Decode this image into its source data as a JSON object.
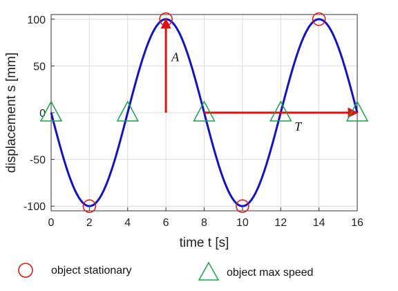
{
  "chart_data": {
    "type": "line",
    "xlabel": "time  t  [s]",
    "ylabel": "displacement  s  [mm]",
    "xlim": [
      0,
      16
    ],
    "ylim": [
      -105,
      105
    ],
    "x_ticks": [
      0,
      2,
      4,
      6,
      8,
      10,
      12,
      14,
      16
    ],
    "y_ticks": [
      -100,
      -50,
      0,
      50,
      100
    ],
    "grid": true,
    "series": [
      {
        "function": "s(t) = -100 sin(2*pi*t/8)",
        "amplitude": 100,
        "period": 8,
        "x": [
          0,
          1,
          2,
          3,
          4,
          5,
          6,
          7,
          8,
          9,
          10,
          11,
          12,
          13,
          14,
          15,
          16
        ],
        "y": [
          0,
          -70.7,
          -100,
          -70.7,
          0,
          70.7,
          100,
          70.7,
          0,
          -70.7,
          -100,
          -70.7,
          0,
          70.7,
          100,
          70.7,
          0
        ],
        "color": "#1010d0"
      }
    ],
    "stationary_points": [
      [
        2,
        -100
      ],
      [
        6,
        100
      ],
      [
        10,
        -100
      ],
      [
        14,
        100
      ]
    ],
    "max_speed_points": [
      [
        0,
        0
      ],
      [
        4,
        0
      ],
      [
        8,
        0
      ],
      [
        12,
        0
      ],
      [
        16,
        0
      ]
    ],
    "annotations": [
      {
        "label": "A",
        "kind": "amplitude-arrow",
        "from": [
          6,
          0
        ],
        "to": [
          6,
          100
        ],
        "color": "#e01010"
      },
      {
        "label": "T",
        "kind": "period-arrow",
        "from": [
          8,
          0
        ],
        "to": [
          16,
          0
        ],
        "color": "#e01010"
      }
    ],
    "colors": {
      "curve": "#1010d0",
      "stationary": "#e01010",
      "max_speed": "#17a34a",
      "arrow": "#e01010"
    }
  },
  "legend": {
    "stationary_label": "object stationary",
    "max_speed_label": "object max speed"
  }
}
